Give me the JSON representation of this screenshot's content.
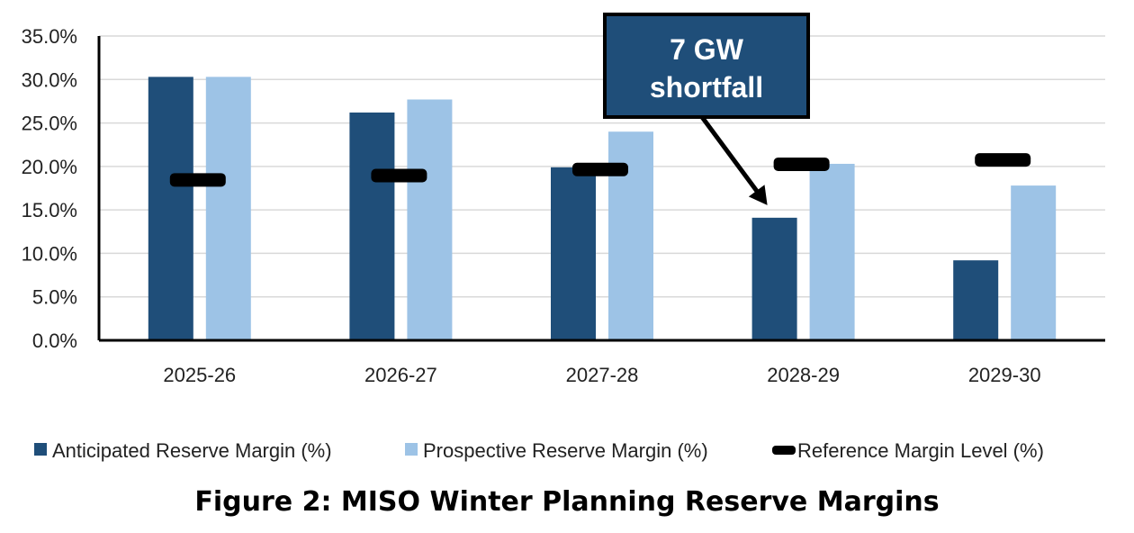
{
  "chart_data": {
    "type": "bar",
    "categories": [
      "2025-26",
      "2026-27",
      "2027-28",
      "2028-29",
      "2029-30"
    ],
    "series": [
      {
        "name": "Anticipated Reserve Margin (%)",
        "color": "#1F4E79",
        "values": [
          30.3,
          26.2,
          19.9,
          14.1,
          9.2
        ]
      },
      {
        "name": "Prospective Reserve Margin (%)",
        "color": "#9DC3E6",
        "values": [
          30.3,
          27.7,
          24.0,
          20.3,
          17.8
        ]
      }
    ],
    "reference": {
      "name": "Reference Margin Level (%)",
      "color": "#000000",
      "values": [
        18.5,
        19.0,
        19.7,
        20.3,
        20.8
      ]
    },
    "ylim": [
      0,
      35
    ],
    "yticks": [
      "0.0%",
      "5.0%",
      "10.0%",
      "15.0%",
      "20.0%",
      "25.0%",
      "30.0%",
      "35.0%"
    ],
    "ytick_values": [
      0,
      5,
      10,
      15,
      20,
      25,
      30,
      35
    ],
    "annotation": {
      "lines": [
        "7 GW",
        "shortfall"
      ],
      "target_category": "2028-29",
      "target_value": 14.1,
      "fill": "#1F4E79"
    },
    "title": "Figure 2: MISO Winter Planning Reserve Margins",
    "legend_position": "bottom"
  }
}
